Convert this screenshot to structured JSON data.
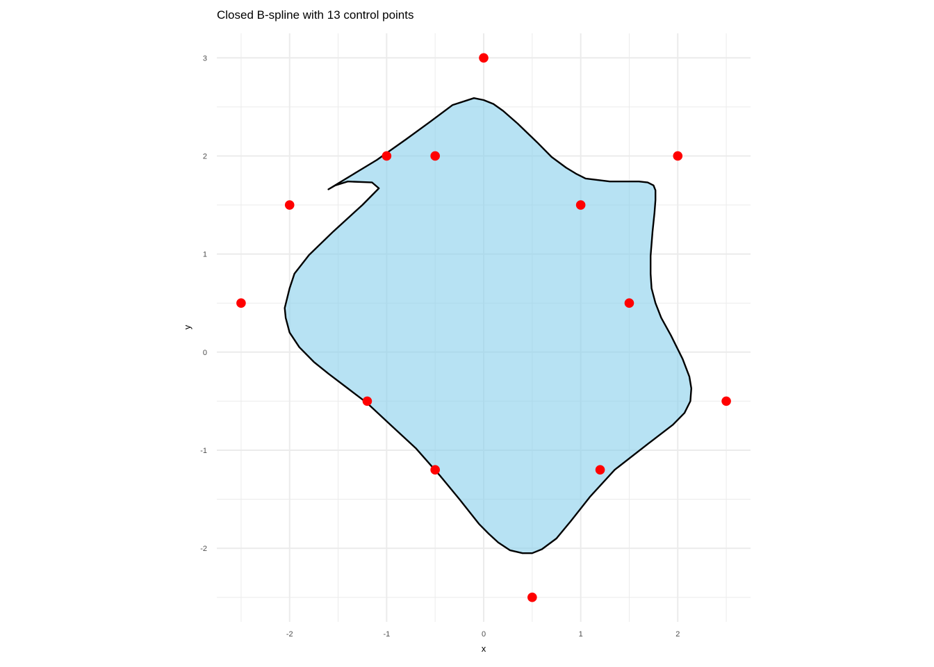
{
  "chart_data": {
    "type": "scatter",
    "title": "Closed B-spline with 13 control points",
    "xlabel": "x",
    "ylabel": "y",
    "xlim": [
      -2.75,
      2.75
    ],
    "ylim": [
      -2.75,
      3.25
    ],
    "x_ticks": [
      -2,
      -1,
      0,
      1,
      2
    ],
    "x_tick_labels": [
      "-2",
      "-1",
      "0",
      "1",
      "2"
    ],
    "y_ticks": [
      -2,
      -1,
      0,
      1,
      2,
      3
    ],
    "y_tick_labels": [
      "-2",
      "-1",
      "0",
      "1",
      "2",
      "3"
    ],
    "grid": true,
    "legend": "none",
    "colors": {
      "point": "#ff0000",
      "fill": "#87ceeb",
      "outline": "#000000"
    },
    "control_points": [
      {
        "x": 0,
        "y": 3
      },
      {
        "x": -1,
        "y": 2
      },
      {
        "x": -0.5,
        "y": 2
      },
      {
        "x": 2,
        "y": 2
      },
      {
        "x": -2,
        "y": 1.5
      },
      {
        "x": 1,
        "y": 1.5
      },
      {
        "x": -2.5,
        "y": 0.5
      },
      {
        "x": 1.5,
        "y": 0.5
      },
      {
        "x": -1.2,
        "y": -0.5
      },
      {
        "x": 2.5,
        "y": -0.5
      },
      {
        "x": -0.5,
        "y": -1.2
      },
      {
        "x": 1.2,
        "y": -1.2
      },
      {
        "x": 0.5,
        "y": -2.5
      }
    ],
    "spline_curve": [
      [
        -0.1,
        2.59
      ],
      [
        -0.32,
        2.52
      ],
      [
        -0.55,
        2.35
      ],
      [
        -0.8,
        2.17
      ],
      [
        -1.1,
        1.96
      ],
      [
        -1.3,
        1.84
      ],
      [
        -1.6,
        1.66
      ],
      [
        -1.53,
        1.7
      ],
      [
        -1.4,
        1.74
      ],
      [
        -1.15,
        1.73
      ],
      [
        -1.08,
        1.67
      ],
      [
        -1.25,
        1.5
      ],
      [
        -1.55,
        1.23
      ],
      [
        -1.8,
        0.99
      ],
      [
        -1.95,
        0.8
      ],
      [
        -2.0,
        0.65
      ],
      [
        -2.05,
        0.45
      ],
      [
        -2.04,
        0.35
      ],
      [
        -2.0,
        0.2
      ],
      [
        -1.9,
        0.05
      ],
      [
        -1.75,
        -0.1
      ],
      [
        -1.6,
        -0.22
      ],
      [
        -1.4,
        -0.37
      ],
      [
        -1.2,
        -0.52
      ],
      [
        -0.95,
        -0.75
      ],
      [
        -0.7,
        -0.98
      ],
      [
        -0.45,
        -1.26
      ],
      [
        -0.25,
        -1.5
      ],
      [
        -0.05,
        -1.75
      ],
      [
        0.05,
        -1.85
      ],
      [
        0.15,
        -1.94
      ],
      [
        0.27,
        -2.02
      ],
      [
        0.4,
        -2.05
      ],
      [
        0.5,
        -2.05
      ],
      [
        0.6,
        -2.01
      ],
      [
        0.75,
        -1.9
      ],
      [
        0.9,
        -1.72
      ],
      [
        1.1,
        -1.47
      ],
      [
        1.35,
        -1.2
      ],
      [
        1.7,
        -0.93
      ],
      [
        1.95,
        -0.74
      ],
      [
        2.07,
        -0.62
      ],
      [
        2.13,
        -0.5
      ],
      [
        2.14,
        -0.37
      ],
      [
        2.12,
        -0.25
      ],
      [
        2.05,
        -0.07
      ],
      [
        1.93,
        0.17
      ],
      [
        1.83,
        0.35
      ],
      [
        1.77,
        0.5
      ],
      [
        1.73,
        0.65
      ],
      [
        1.72,
        0.8
      ],
      [
        1.72,
        0.98
      ],
      [
        1.74,
        1.23
      ],
      [
        1.76,
        1.42
      ],
      [
        1.77,
        1.55
      ],
      [
        1.77,
        1.65
      ],
      [
        1.75,
        1.7
      ],
      [
        1.69,
        1.73
      ],
      [
        1.6,
        1.74
      ],
      [
        1.3,
        1.74
      ],
      [
        1.05,
        1.77
      ],
      [
        0.95,
        1.82
      ],
      [
        0.85,
        1.88
      ],
      [
        0.7,
        1.99
      ],
      [
        0.55,
        2.14
      ],
      [
        0.35,
        2.33
      ],
      [
        0.2,
        2.46
      ],
      [
        0.1,
        2.53
      ],
      [
        0.0,
        2.57
      ],
      [
        -0.1,
        2.59
      ]
    ]
  }
}
